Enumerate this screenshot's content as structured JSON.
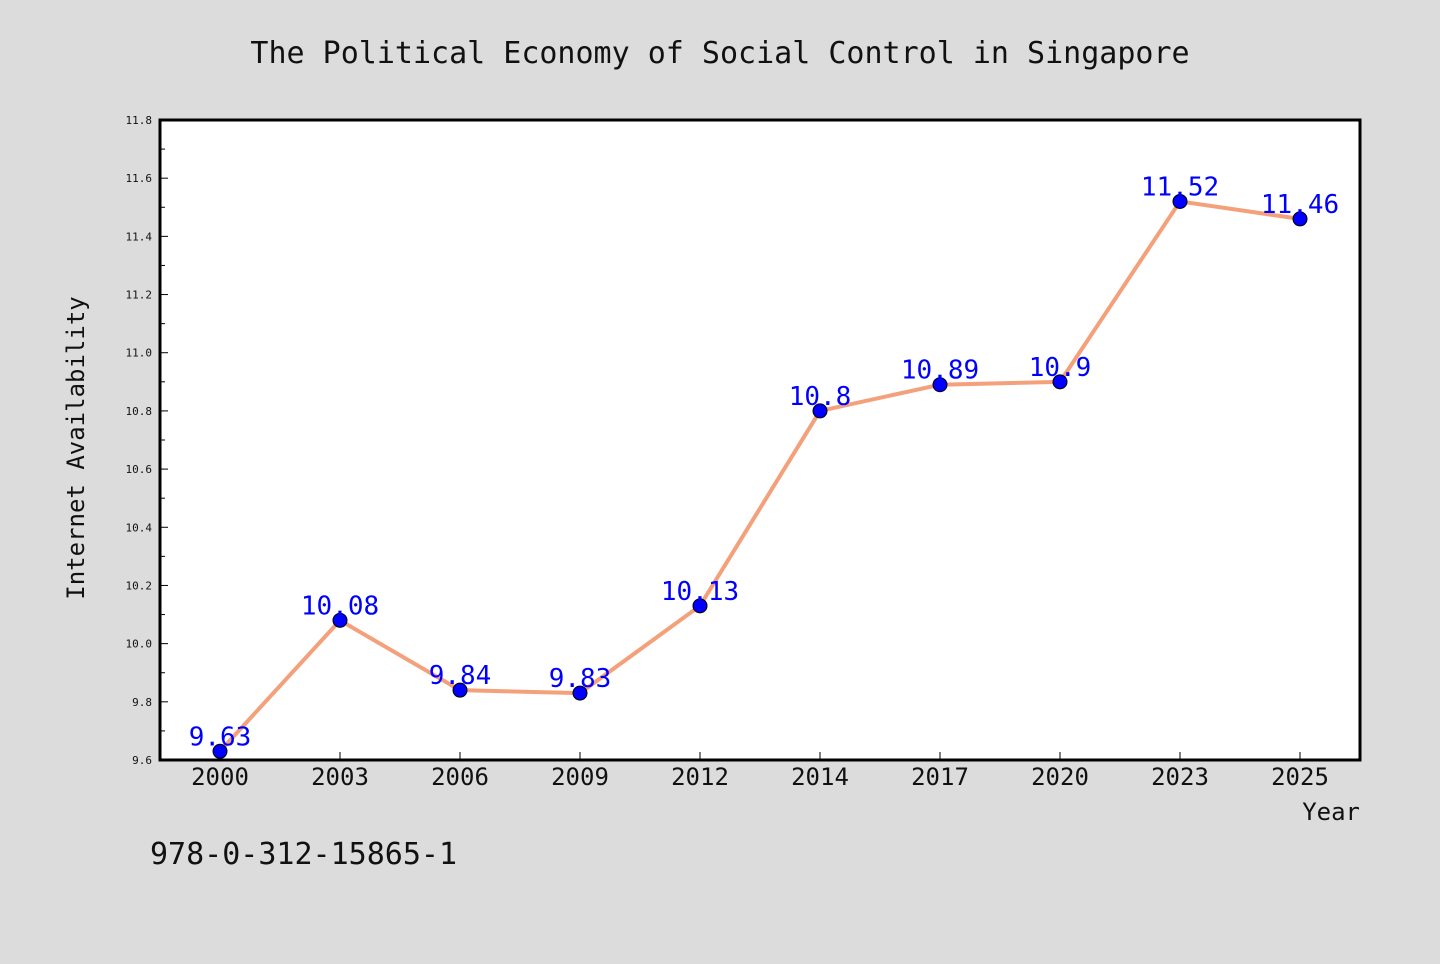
{
  "chart_data": {
    "type": "line",
    "title": "The Political Economy of Social Control in Singapore",
    "xlabel": "Year",
    "ylabel": "Internet Availability",
    "categories": [
      "2000",
      "2003",
      "2006",
      "2009",
      "2012",
      "2014",
      "2017",
      "2020",
      "2023",
      "2025"
    ],
    "values": [
      9.63,
      10.08,
      9.84,
      9.83,
      10.13,
      10.8,
      10.89,
      10.9,
      11.52,
      11.46
    ],
    "data_labels": [
      "9.63",
      "10.08",
      "9.84",
      "9.83",
      "10.13",
      "10.8",
      "10.89",
      "10.9",
      "11.52",
      "11.46"
    ],
    "ylim": [
      9.6,
      11.8
    ],
    "yticks": [
      "9.6",
      "9.8",
      "10.0",
      "10.2",
      "10.4",
      "10.6",
      "10.8",
      "11.0",
      "11.2",
      "11.4",
      "11.6",
      "11.8"
    ],
    "grid": false,
    "line_color": "#f4a07a",
    "marker_color": "#0000ff",
    "label_color": "#0000ff"
  },
  "footer": {
    "isbn": "978-0-312-15865-1"
  }
}
